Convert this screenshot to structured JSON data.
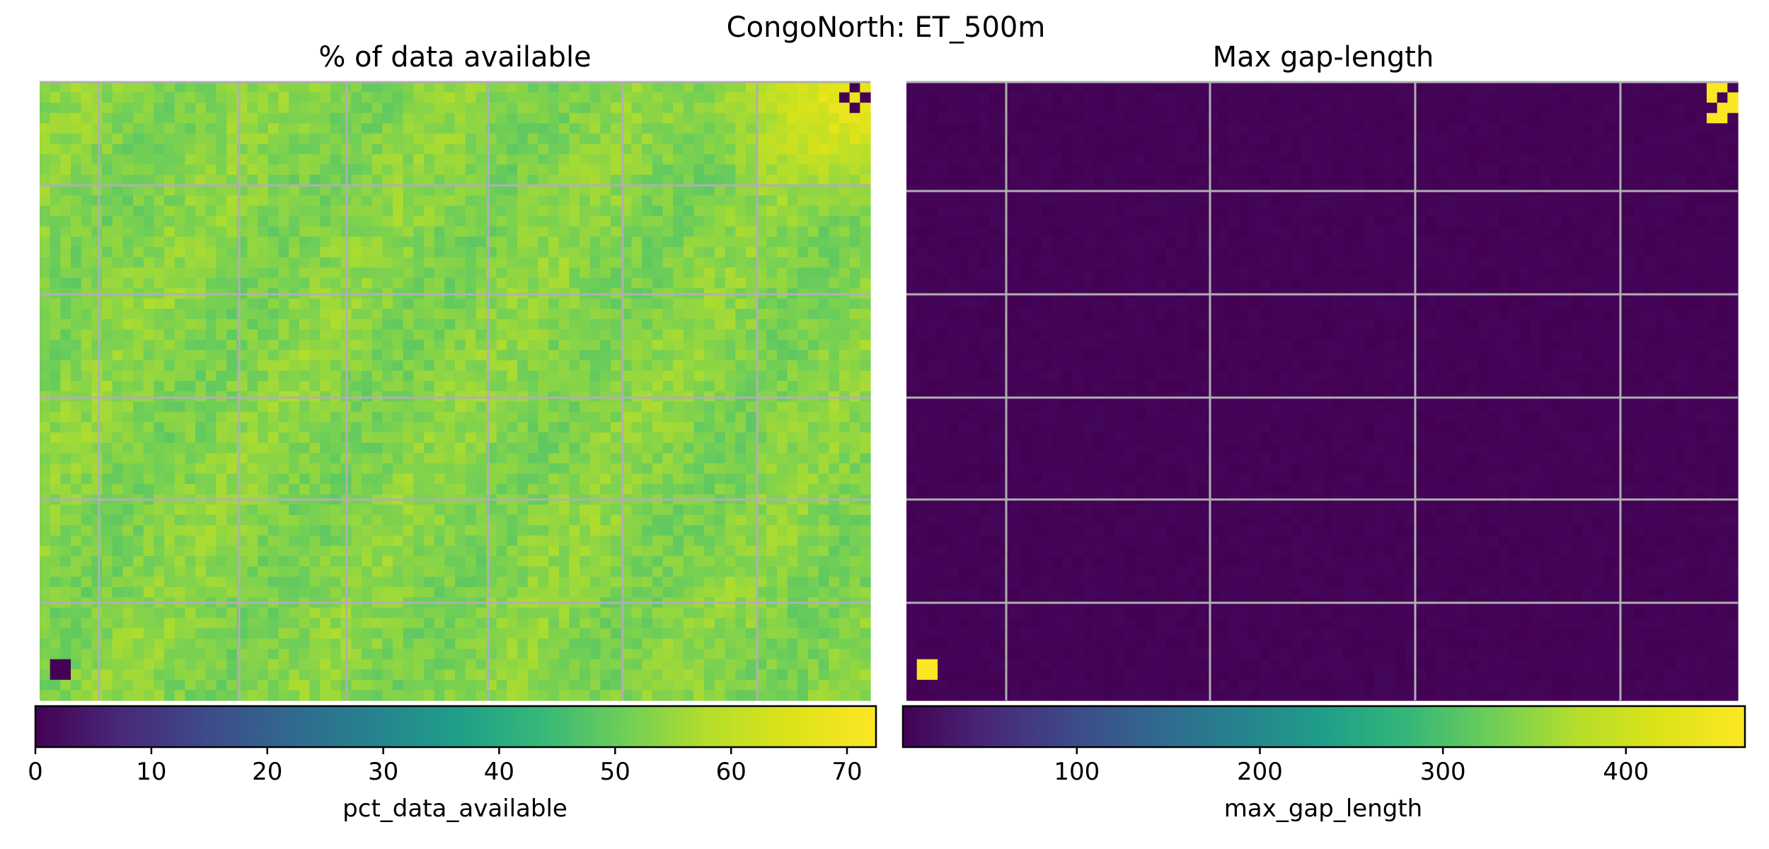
{
  "figure": {
    "suptitle": "CongoNorth: ET_500m"
  },
  "chart_data": [
    {
      "type": "heatmap",
      "title": "% of data available",
      "colormap": "viridis",
      "colorbar": {
        "label": "pct_data_available",
        "range": [
          0,
          72.5
        ],
        "ticks": [
          "0",
          "10",
          "20",
          "30",
          "40",
          "50",
          "60",
          "70"
        ]
      },
      "grid": true,
      "grid_color": "#b0b0b0",
      "typical_value_range": [
        44,
        62
      ],
      "missing_value_pixels": "dark purple (≈0) in the top-right corner and a small patch near bottom-left",
      "high_value_region": "yellow-green (≈65–72) in the top-right corner"
    },
    {
      "type": "heatmap",
      "title": "Max gap-length",
      "colormap": "viridis",
      "colorbar": {
        "label": "max_gap_length",
        "range": [
          5,
          465
        ],
        "ticks": [
          "100",
          "200",
          "300",
          "400"
        ]
      },
      "grid": true,
      "grid_color": "#b0b0b0",
      "typical_value_range": [
        5,
        15
      ],
      "high_value_region": "yellow (≈460) pixels in the top-right corner and a small patch near bottom-left"
    }
  ],
  "colors": {
    "background": "#ffffff",
    "text": "#000000",
    "axis_frame": "#000000",
    "grid": "#b0b0b0"
  }
}
